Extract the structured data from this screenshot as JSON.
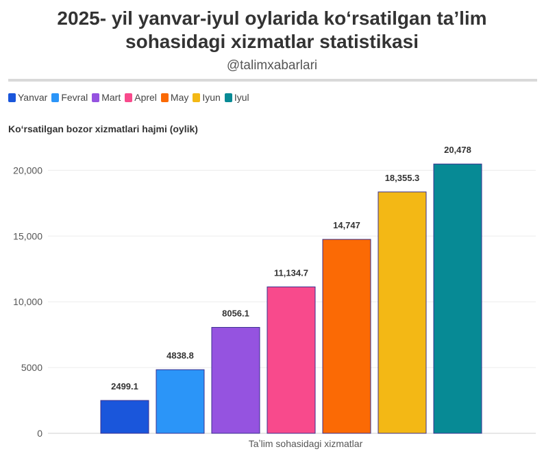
{
  "header": {
    "title_line1": "2025- yil yanvar-iyul oylarida koʻrsatilgan taʼlim",
    "title_line2": "sohasidagi xizmatlar statistikasi",
    "subtitle": "@talimxabarlari"
  },
  "chart_data": {
    "type": "bar",
    "title": "Koʻrsatilgan bozor xizmatlari hajmi (oylik)",
    "xlabel": "Taʼlim sohasidagi xizmatlar",
    "ylabel": "",
    "ylim": [
      0,
      22000
    ],
    "yticks": [
      0,
      5000,
      10000,
      15000,
      20000
    ],
    "ytick_labels": [
      "0",
      "5000",
      "10,000",
      "15,000",
      "20,000"
    ],
    "grid": true,
    "legend_position": "top-left",
    "series": [
      {
        "name": "Yanvar",
        "value": 2499.1,
        "label": "2499.1",
        "color": "#1a56db"
      },
      {
        "name": "Fevral",
        "value": 4838.8,
        "label": "4838.8",
        "color": "#2b95f8"
      },
      {
        "name": "Mart",
        "value": 8056.1,
        "label": "8056.1",
        "color": "#9553e0"
      },
      {
        "name": "Aprel",
        "value": 11134.7,
        "label": "11,134.7",
        "color": "#f84a8c"
      },
      {
        "name": "May",
        "value": 14747,
        "label": "14,747",
        "color": "#fb6a05"
      },
      {
        "name": "Iyun",
        "value": 18355.3,
        "label": "18,355.3",
        "color": "#f3b815"
      },
      {
        "name": "Iyul",
        "value": 20478,
        "label": "20,478",
        "color": "#078a95"
      }
    ]
  }
}
